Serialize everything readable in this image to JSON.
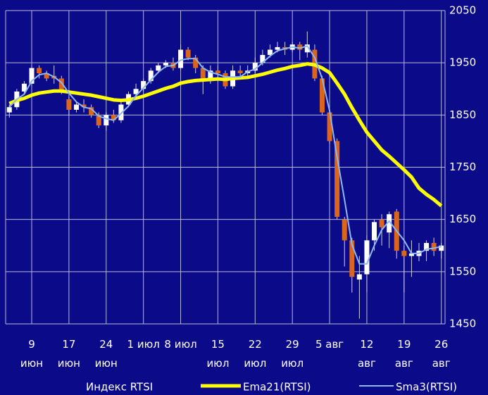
{
  "chart_data": {
    "type": "candlestick",
    "categories": [
      null,
      null,
      null,
      "9\nиюн",
      null,
      null,
      null,
      null,
      "17\nиюн",
      null,
      null,
      null,
      null,
      "24\nиюн",
      null,
      null,
      null,
      null,
      "1 июл",
      null,
      null,
      null,
      null,
      "8 июл",
      null,
      null,
      null,
      null,
      "15\nиюл",
      null,
      null,
      null,
      null,
      "22\nиюл",
      null,
      null,
      null,
      null,
      "29\nиюл",
      null,
      null,
      null,
      null,
      "5 авг",
      null,
      null,
      null,
      null,
      "12\nавг",
      null,
      null,
      null,
      null,
      "19\nавг",
      null,
      null,
      null,
      null,
      "26\nавг"
    ],
    "candles": {
      "name": "Индекс RTSI",
      "up_color": "#ffffff",
      "down_color": "#d9661c",
      "open": [
        1855,
        1865,
        1895,
        1910,
        1940,
        1930,
        1925,
        1920,
        1880,
        1860,
        1870,
        1865,
        1850,
        1830,
        1850,
        1840,
        1870,
        1890,
        1900,
        1915,
        1935,
        1945,
        1950,
        1940,
        1975,
        1960,
        1940,
        1920,
        1935,
        1930,
        1905,
        1935,
        1930,
        1935,
        1950,
        1965,
        1975,
        1980,
        1975,
        1985,
        1970,
        1975,
        1920,
        1855,
        1800,
        1650,
        1610,
        1535,
        1545,
        1610,
        1650,
        1625,
        1665,
        1590,
        1580,
        1580,
        1590,
        1605,
        1590
      ],
      "high": [
        1870,
        1900,
        1915,
        1945,
        1945,
        1935,
        1945,
        1925,
        1885,
        1875,
        1880,
        1870,
        1855,
        1855,
        1860,
        1875,
        1895,
        1910,
        1920,
        1940,
        1950,
        1955,
        1960,
        1985,
        1980,
        1965,
        1945,
        1945,
        1945,
        1935,
        1945,
        1945,
        1945,
        1960,
        1975,
        1985,
        1990,
        1990,
        1990,
        1990,
        2010,
        1985,
        1925,
        1860,
        1805,
        1655,
        1615,
        1580,
        1620,
        1650,
        1660,
        1665,
        1670,
        1600,
        1610,
        1605,
        1610,
        1615,
        1605
      ],
      "low": [
        1845,
        1860,
        1890,
        1905,
        1920,
        1915,
        1910,
        1890,
        1850,
        1855,
        1855,
        1845,
        1825,
        1820,
        1835,
        1835,
        1865,
        1885,
        1895,
        1910,
        1930,
        1940,
        1935,
        1935,
        1955,
        1930,
        1890,
        1910,
        1915,
        1900,
        1900,
        1920,
        1920,
        1930,
        1945,
        1960,
        1970,
        1965,
        1970,
        1955,
        1960,
        1915,
        1850,
        1795,
        1650,
        1560,
        1510,
        1460,
        1510,
        1590,
        1600,
        1595,
        1575,
        1510,
        1540,
        1570,
        1570,
        1580,
        1575
      ],
      "close": [
        1865,
        1895,
        1910,
        1940,
        1930,
        1920,
        1920,
        1895,
        1860,
        1870,
        1865,
        1850,
        1830,
        1850,
        1840,
        1870,
        1890,
        1900,
        1915,
        1935,
        1945,
        1950,
        1940,
        1975,
        1960,
        1940,
        1920,
        1935,
        1930,
        1905,
        1935,
        1930,
        1935,
        1950,
        1965,
        1975,
        1980,
        1975,
        1985,
        1975,
        1985,
        1920,
        1855,
        1800,
        1655,
        1610,
        1540,
        1545,
        1610,
        1645,
        1635,
        1660,
        1590,
        1580,
        1585,
        1590,
        1605,
        1590,
        1600
      ]
    },
    "series": [
      {
        "name": "Ema21(RTSI)",
        "color": "#ffff00",
        "values": [
          1872,
          1878,
          1882,
          1888,
          1892,
          1894,
          1896,
          1896,
          1894,
          1892,
          1890,
          1888,
          1885,
          1882,
          1879,
          1878,
          1879,
          1882,
          1886,
          1891,
          1896,
          1901,
          1905,
          1911,
          1914,
          1916,
          1917,
          1918,
          1919,
          1918,
          1920,
          1921,
          1922,
          1925,
          1928,
          1932,
          1936,
          1939,
          1943,
          1945,
          1948,
          1946,
          1940,
          1931,
          1911,
          1890,
          1864,
          1840,
          1817,
          1800,
          1783,
          1771,
          1758,
          1745,
          1731,
          1710,
          1698,
          1688,
          1676
        ]
      },
      {
        "name": "Sma3(RTSI)",
        "color": "#8fb8f0",
        "values": [
          1865,
          1880,
          1890,
          1915,
          1927,
          1930,
          1923,
          1912,
          1892,
          1875,
          1865,
          1862,
          1848,
          1843,
          1840,
          1853,
          1867,
          1887,
          1902,
          1917,
          1932,
          1943,
          1945,
          1955,
          1958,
          1958,
          1940,
          1932,
          1928,
          1923,
          1923,
          1923,
          1933,
          1938,
          1950,
          1963,
          1973,
          1977,
          1980,
          1978,
          1982,
          1960,
          1920,
          1858,
          1770,
          1688,
          1602,
          1565,
          1565,
          1600,
          1630,
          1647,
          1628,
          1610,
          1585,
          1585,
          1593,
          1595,
          1598
        ]
      }
    ],
    "ylim": [
      1450,
      2050
    ],
    "yticks": [
      1450,
      1550,
      1650,
      1750,
      1850,
      1950,
      2050
    ],
    "grid": true
  }
}
